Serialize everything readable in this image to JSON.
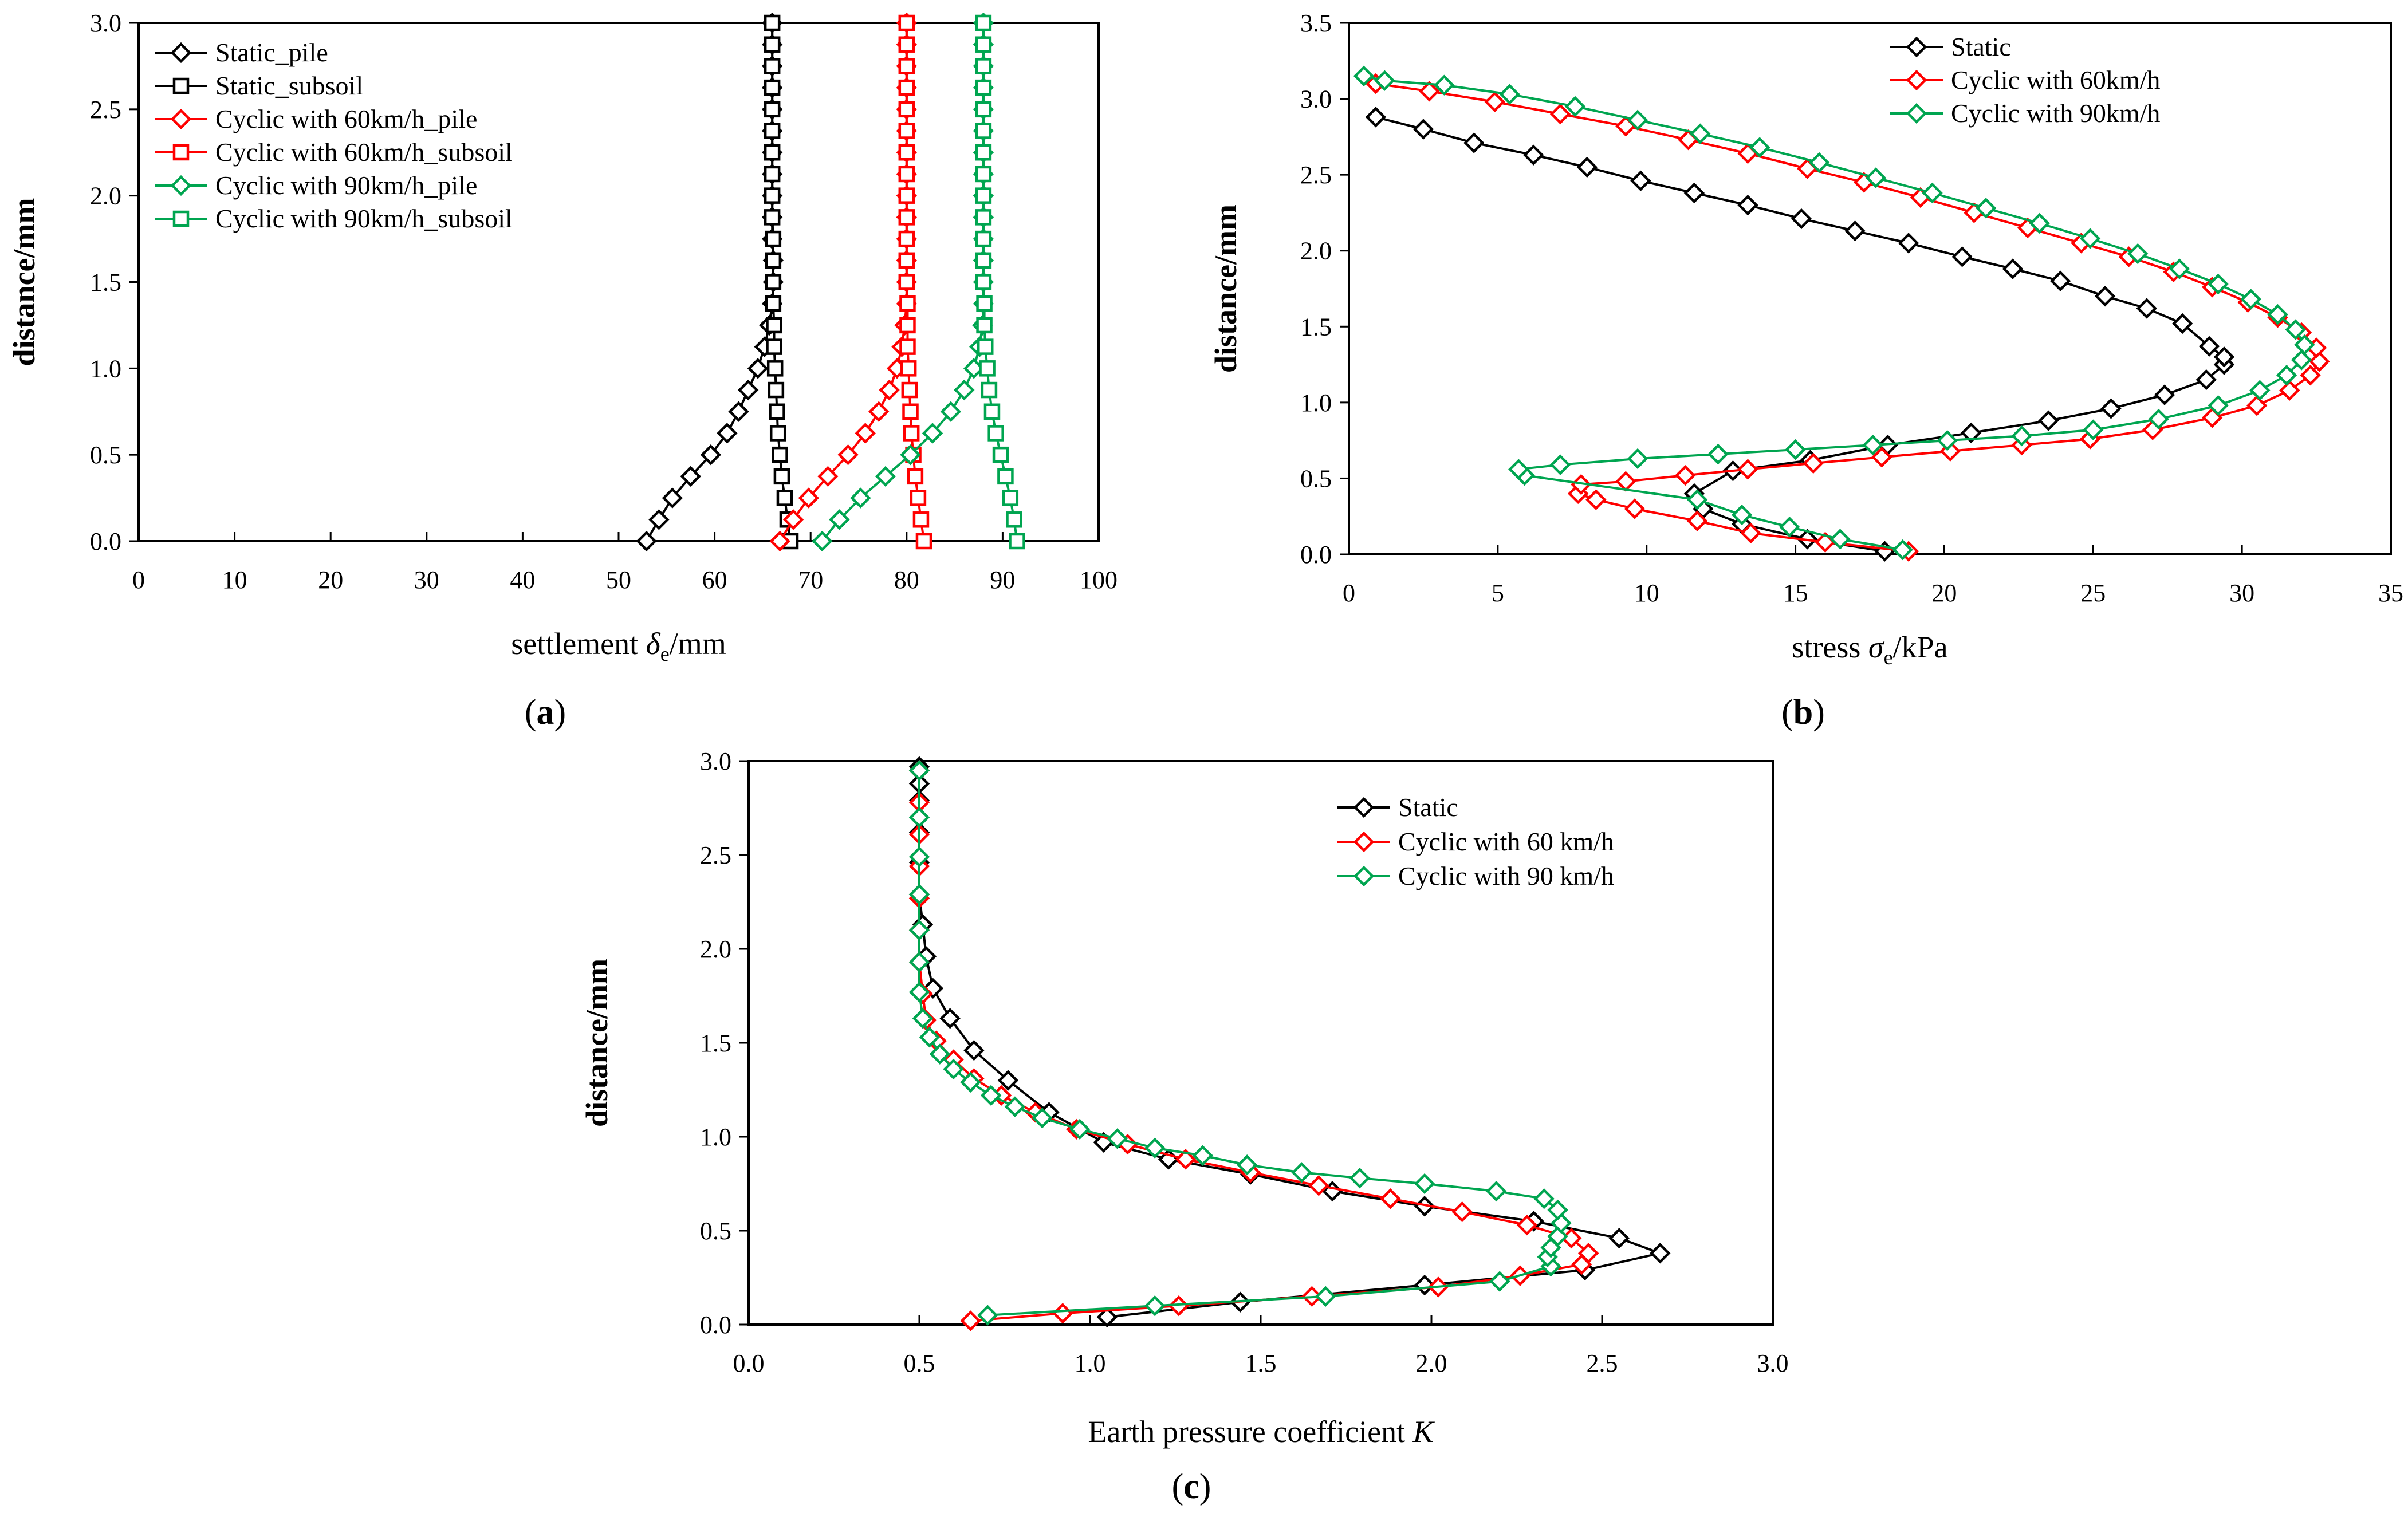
{
  "chart_data": [
    {
      "type": "line",
      "panel_label": "a",
      "xlabel": {
        "main": "settlement ",
        "symbol": "δ",
        "sub": "e",
        "unit": "/mm"
      },
      "ylabel": "distance/mm",
      "xlim": [
        0,
        100
      ],
      "ylim": [
        0,
        3
      ],
      "xticks": [
        "0",
        "10",
        "20",
        "30",
        "40",
        "50",
        "60",
        "70",
        "80",
        "90",
        "100"
      ],
      "yticks": [
        "0.0",
        "0.5",
        "1.0",
        "1.5",
        "2.0",
        "2.5",
        "3.0"
      ],
      "grid": false,
      "legend_position": "top-left",
      "series": [
        {
          "name": "Static_pile",
          "color": "#000000",
          "marker": "diamond",
          "x": [
            52.9,
            54.2,
            55.6,
            57.5,
            59.6,
            61.3,
            62.5,
            63.5,
            64.5,
            65.2,
            65.7,
            66.0,
            66.1,
            66.1,
            66.0,
            66.0,
            66.0,
            66.0,
            66.0,
            66.0,
            66.0,
            66.0,
            66.0,
            66.0,
            66.0
          ],
          "y": [
            0,
            0.125,
            0.25,
            0.375,
            0.5,
            0.625,
            0.75,
            0.875,
            1.0,
            1.125,
            1.25,
            1.375,
            1.5,
            1.625,
            1.75,
            1.875,
            2.0,
            2.125,
            2.25,
            2.375,
            2.5,
            2.625,
            2.75,
            2.875,
            3.0
          ]
        },
        {
          "name": "Static_subsoil",
          "color": "#000000",
          "marker": "square",
          "x": [
            67.9,
            67.6,
            67.3,
            67.0,
            66.8,
            66.6,
            66.5,
            66.4,
            66.3,
            66.2,
            66.2,
            66.1,
            66.1,
            66.1,
            66.1,
            66.0,
            66.0,
            66.0,
            66.0,
            66.0,
            66.0,
            66.0,
            66.0,
            66.0,
            66.0
          ],
          "y": [
            0,
            0.125,
            0.25,
            0.375,
            0.5,
            0.625,
            0.75,
            0.875,
            1.0,
            1.125,
            1.25,
            1.375,
            1.5,
            1.625,
            1.75,
            1.875,
            2.0,
            2.125,
            2.25,
            2.375,
            2.5,
            2.625,
            2.75,
            2.875,
            3.0
          ]
        },
        {
          "name": "Cyclic with 60km/h_pile",
          "color": "#ff0000",
          "marker": "diamond",
          "x": [
            66.8,
            68.2,
            69.8,
            71.8,
            73.9,
            75.7,
            77.1,
            78.2,
            79.0,
            79.5,
            79.8,
            80.0,
            80.0,
            80.0,
            80.0,
            80.0,
            80.0,
            80.0,
            80.0,
            80.0,
            80.0,
            80.0,
            80.0,
            80.0,
            80.0
          ],
          "y": [
            0,
            0.125,
            0.25,
            0.375,
            0.5,
            0.625,
            0.75,
            0.875,
            1.0,
            1.125,
            1.25,
            1.375,
            1.5,
            1.625,
            1.75,
            1.875,
            2.0,
            2.125,
            2.25,
            2.375,
            2.5,
            2.625,
            2.75,
            2.875,
            3.0
          ]
        },
        {
          "name": "Cyclic with 60km/h_subsoil",
          "color": "#ff0000",
          "marker": "square",
          "x": [
            81.8,
            81.5,
            81.2,
            80.9,
            80.7,
            80.5,
            80.4,
            80.3,
            80.2,
            80.1,
            80.1,
            80.1,
            80.0,
            80.0,
            80.0,
            80.0,
            80.0,
            80.0,
            80.0,
            80.0,
            80.0,
            80.0,
            80.0,
            80.0,
            80.0
          ],
          "y": [
            0,
            0.125,
            0.25,
            0.375,
            0.5,
            0.625,
            0.75,
            0.875,
            1.0,
            1.125,
            1.25,
            1.375,
            1.5,
            1.625,
            1.75,
            1.875,
            2.0,
            2.125,
            2.25,
            2.375,
            2.5,
            2.625,
            2.75,
            2.875,
            3.0
          ]
        },
        {
          "name": "Cyclic with 90km/h_pile",
          "color": "#00a550",
          "marker": "diamond",
          "x": [
            71.2,
            73.0,
            75.2,
            77.8,
            80.4,
            82.7,
            84.6,
            86.0,
            87.0,
            87.6,
            87.9,
            88.0,
            88.0,
            88.0,
            88.0,
            88.0,
            88.0,
            88.0,
            88.0,
            88.0,
            88.0,
            88.0,
            88.0,
            88.0,
            88.0
          ],
          "y": [
            0,
            0.125,
            0.25,
            0.375,
            0.5,
            0.625,
            0.75,
            0.875,
            1.0,
            1.125,
            1.25,
            1.375,
            1.5,
            1.625,
            1.75,
            1.875,
            2.0,
            2.125,
            2.25,
            2.375,
            2.5,
            2.625,
            2.75,
            2.875,
            3.0
          ]
        },
        {
          "name": "Cyclic with 90km/h_subsoil",
          "color": "#00a550",
          "marker": "square",
          "x": [
            91.5,
            91.2,
            90.8,
            90.3,
            89.8,
            89.3,
            88.9,
            88.6,
            88.4,
            88.2,
            88.1,
            88.1,
            88.0,
            88.0,
            88.0,
            88.0,
            88.0,
            88.0,
            88.0,
            88.0,
            88.0,
            88.0,
            88.0,
            88.0,
            88.0
          ],
          "y": [
            0,
            0.125,
            0.25,
            0.375,
            0.5,
            0.625,
            0.75,
            0.875,
            1.0,
            1.125,
            1.25,
            1.375,
            1.5,
            1.625,
            1.75,
            1.875,
            2.0,
            2.125,
            2.25,
            2.375,
            2.5,
            2.625,
            2.75,
            2.875,
            3.0
          ]
        }
      ]
    },
    {
      "type": "line",
      "panel_label": "b",
      "xlabel": {
        "main": "stress ",
        "symbol": "σ",
        "sub": "e",
        "unit": "/kPa"
      },
      "ylabel": "distance/mm",
      "xlim": [
        0,
        35
      ],
      "ylim": [
        0,
        3.5
      ],
      "xticks": [
        "0",
        "5",
        "10",
        "15",
        "20",
        "25",
        "30",
        "35"
      ],
      "yticks": [
        "0.0",
        "0.5",
        "1.0",
        "1.5",
        "2.0",
        "2.5",
        "3.0",
        "3.5"
      ],
      "grid": false,
      "legend_position": "top-right",
      "series": [
        {
          "name": "Static",
          "color": "#000000",
          "marker": "diamond",
          "x": [
            18.0,
            15.4,
            13.2,
            11.9,
            11.6,
            12.9,
            15.5,
            18.1,
            20.9,
            23.5,
            25.6,
            27.4,
            28.8,
            29.4,
            29.4,
            28.9,
            28.0,
            26.8,
            25.4,
            23.9,
            22.3,
            20.6,
            18.8,
            17.0,
            15.2,
            13.4,
            11.6,
            9.8,
            8.0,
            6.2,
            4.2,
            2.5,
            0.9
          ],
          "y": [
            0.02,
            0.1,
            0.2,
            0.3,
            0.4,
            0.55,
            0.62,
            0.72,
            0.8,
            0.88,
            0.96,
            1.05,
            1.15,
            1.25,
            1.3,
            1.37,
            1.52,
            1.62,
            1.7,
            1.8,
            1.88,
            1.96,
            2.05,
            2.13,
            2.21,
            2.3,
            2.38,
            2.46,
            2.55,
            2.63,
            2.71,
            2.8,
            2.88
          ]
        },
        {
          "name": "Cyclic with 60km/h",
          "color": "#ff0000",
          "marker": "diamond",
          "x": [
            18.8,
            16.0,
            13.5,
            11.7,
            9.6,
            8.3,
            7.7,
            7.8,
            9.3,
            11.3,
            13.4,
            15.6,
            17.9,
            20.2,
            22.6,
            24.9,
            27.0,
            29.0,
            30.5,
            31.6,
            32.3,
            32.6,
            32.5,
            32.0,
            31.2,
            30.2,
            29.0,
            27.7,
            26.2,
            24.6,
            22.8,
            21.0,
            19.2,
            17.3,
            15.4,
            13.4,
            11.4,
            9.3,
            7.1,
            4.9,
            2.7,
            0.9
          ],
          "y": [
            0.02,
            0.08,
            0.14,
            0.22,
            0.3,
            0.36,
            0.4,
            0.46,
            0.48,
            0.52,
            0.56,
            0.6,
            0.64,
            0.68,
            0.72,
            0.76,
            0.82,
            0.9,
            0.98,
            1.08,
            1.18,
            1.27,
            1.36,
            1.46,
            1.56,
            1.66,
            1.76,
            1.86,
            1.96,
            2.05,
            2.15,
            2.25,
            2.35,
            2.45,
            2.54,
            2.64,
            2.73,
            2.82,
            2.9,
            2.98,
            3.05,
            3.1
          ]
        },
        {
          "name": "Cyclic with 90km/h",
          "color": "#00a550",
          "marker": "diamond",
          "x": [
            18.6,
            16.5,
            14.8,
            13.2,
            11.7,
            5.9,
            5.7,
            7.1,
            9.7,
            12.4,
            15.0,
            17.6,
            20.1,
            22.6,
            25.0,
            27.2,
            29.2,
            30.6,
            31.5,
            32.0,
            32.1,
            31.8,
            31.2,
            30.3,
            29.2,
            27.9,
            26.5,
            24.9,
            23.2,
            21.4,
            19.6,
            17.7,
            15.8,
            13.8,
            11.8,
            9.7,
            7.6,
            5.4,
            3.2,
            1.2,
            0.5
          ],
          "y": [
            0.03,
            0.1,
            0.18,
            0.26,
            0.36,
            0.52,
            0.56,
            0.59,
            0.63,
            0.66,
            0.69,
            0.72,
            0.75,
            0.78,
            0.82,
            0.89,
            0.98,
            1.08,
            1.18,
            1.28,
            1.38,
            1.48,
            1.58,
            1.68,
            1.78,
            1.88,
            1.98,
            2.08,
            2.18,
            2.28,
            2.38,
            2.48,
            2.58,
            2.68,
            2.77,
            2.86,
            2.95,
            3.03,
            3.09,
            3.12,
            3.15
          ]
        }
      ]
    },
    {
      "type": "line",
      "panel_label": "c",
      "xlabel": {
        "main": "Earth pressure coefficient ",
        "symbol": "K",
        "sub": "",
        "unit": ""
      },
      "ylabel": "distance/mm",
      "xlim": [
        0,
        3
      ],
      "ylim": [
        0,
        3
      ],
      "xticks": [
        "0.0",
        "0.5",
        "1.0",
        "1.5",
        "2.0",
        "2.5",
        "3.0"
      ],
      "yticks": [
        "0.0",
        "0.5",
        "1.0",
        "1.5",
        "2.0",
        "2.5",
        "3.0"
      ],
      "grid": false,
      "legend_position": "top-right",
      "series": [
        {
          "name": "Static",
          "color": "#000000",
          "marker": "diamond",
          "x": [
            1.05,
            1.44,
            1.98,
            2.45,
            2.67,
            2.55,
            2.3,
            1.98,
            1.71,
            1.47,
            1.23,
            1.04,
            0.88,
            0.76,
            0.66,
            0.59,
            0.54,
            0.52,
            0.51,
            0.5,
            0.5,
            0.5,
            0.5,
            0.5,
            0.5
          ],
          "y": [
            0.04,
            0.12,
            0.21,
            0.29,
            0.38,
            0.46,
            0.55,
            0.63,
            0.71,
            0.8,
            0.88,
            0.97,
            1.13,
            1.3,
            1.46,
            1.63,
            1.79,
            1.96,
            2.13,
            2.29,
            2.46,
            2.62,
            2.79,
            2.88,
            2.97
          ]
        },
        {
          "name": "Cyclic with 60 km/h",
          "color": "#ff0000",
          "marker": "diamond",
          "x": [
            0.65,
            0.92,
            1.26,
            1.65,
            2.02,
            2.26,
            2.44,
            2.46,
            2.41,
            2.28,
            2.09,
            1.88,
            1.67,
            1.47,
            1.28,
            1.11,
            0.96,
            0.84,
            0.74,
            0.66,
            0.6,
            0.55,
            0.52,
            0.51,
            0.5,
            0.5,
            0.5,
            0.5,
            0.5,
            0.5,
            0.5
          ],
          "y": [
            0.02,
            0.06,
            0.1,
            0.15,
            0.2,
            0.26,
            0.32,
            0.38,
            0.46,
            0.53,
            0.6,
            0.67,
            0.74,
            0.81,
            0.88,
            0.96,
            1.04,
            1.13,
            1.22,
            1.31,
            1.41,
            1.51,
            1.62,
            1.76,
            1.93,
            2.1,
            2.27,
            2.44,
            2.61,
            2.78,
            2.95
          ]
        },
        {
          "name": "Cyclic with 90 km/h",
          "color": "#00a550",
          "marker": "diamond",
          "x": [
            0.7,
            1.19,
            1.69,
            2.2,
            2.35,
            2.34,
            2.35,
            2.37,
            2.38,
            2.37,
            2.33,
            2.19,
            1.98,
            1.79,
            1.62,
            1.46,
            1.33,
            1.19,
            1.08,
            0.97,
            0.86,
            0.78,
            0.71,
            0.65,
            0.6,
            0.56,
            0.53,
            0.51,
            0.5,
            0.5,
            0.5,
            0.5,
            0.5,
            0.5,
            0.5
          ],
          "y": [
            0.05,
            0.1,
            0.15,
            0.23,
            0.31,
            0.36,
            0.41,
            0.47,
            0.54,
            0.61,
            0.67,
            0.71,
            0.75,
            0.78,
            0.81,
            0.85,
            0.9,
            0.94,
            0.99,
            1.04,
            1.1,
            1.16,
            1.22,
            1.29,
            1.36,
            1.44,
            1.53,
            1.63,
            1.77,
            1.93,
            2.1,
            2.29,
            2.49,
            2.7,
            2.95
          ]
        }
      ]
    }
  ]
}
